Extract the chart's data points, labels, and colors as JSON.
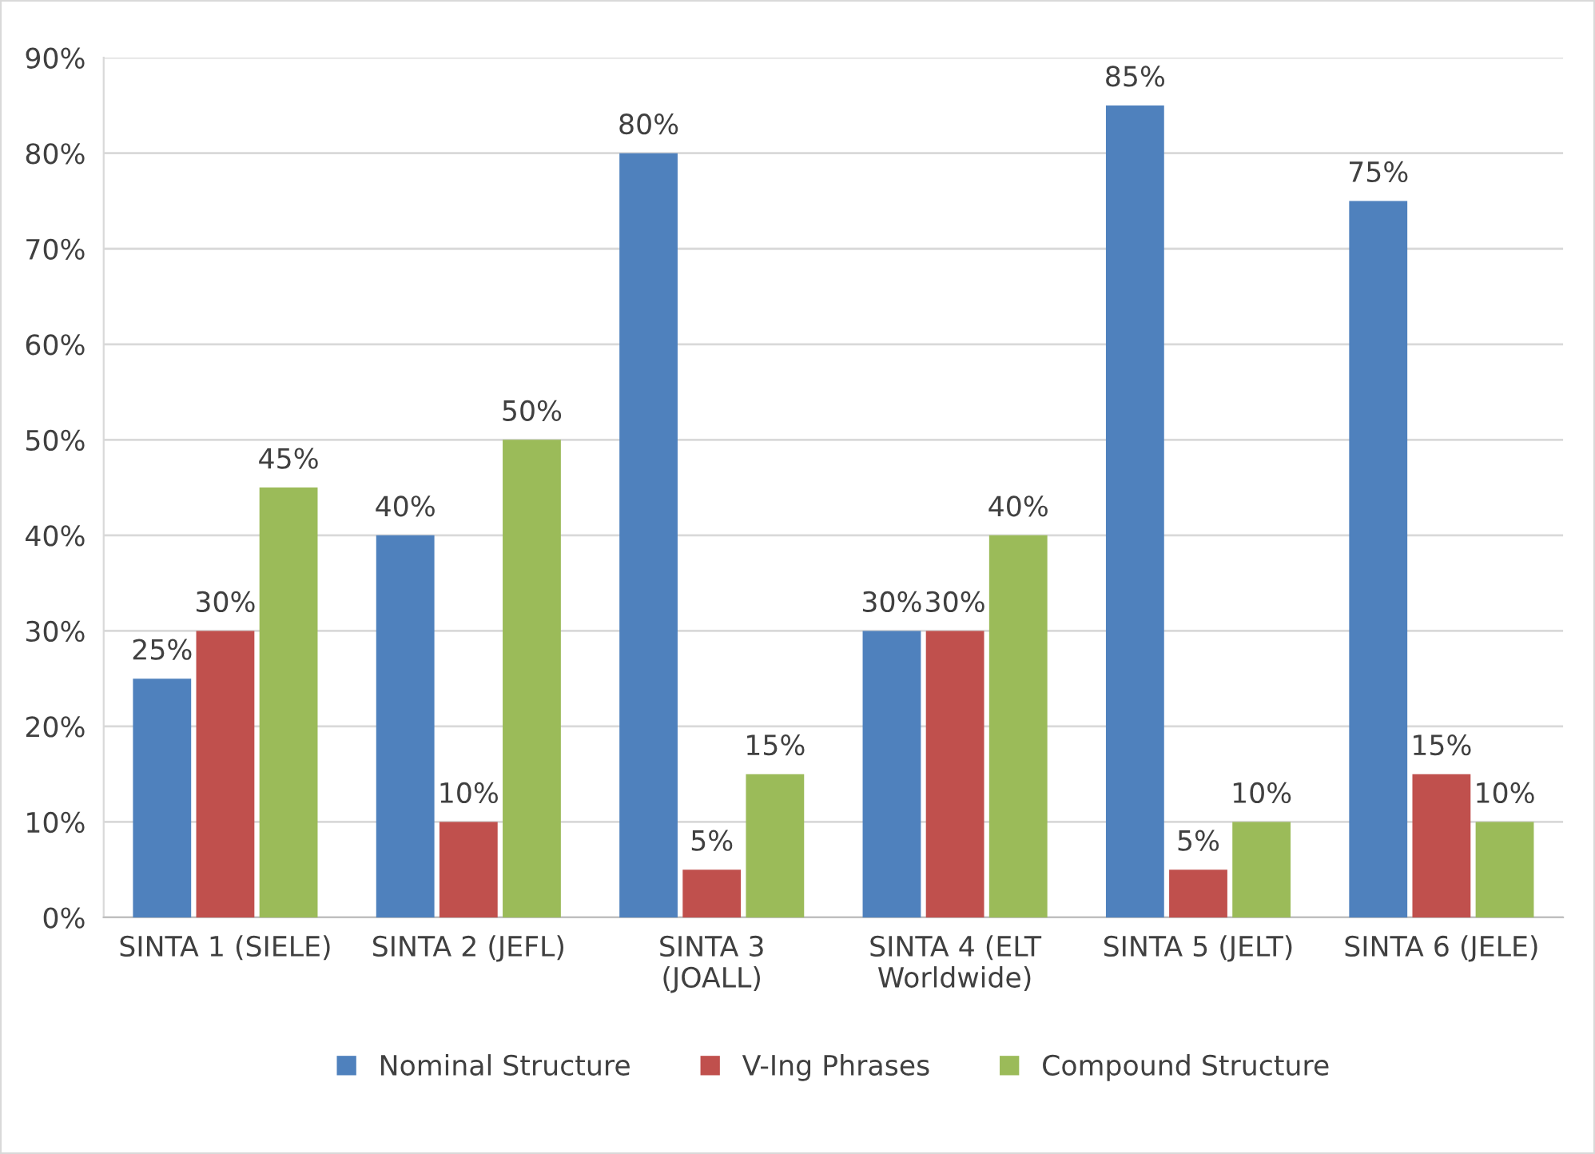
{
  "chart_data": {
    "type": "bar",
    "categories": [
      "SINTA 1 (SIELE)",
      "SINTA 2 (JEFL)",
      "SINTA 3\n(JOALL)",
      "SINTA 4 (ELT\nWorldwide)",
      "SINTA 5 (JELT)",
      "SINTA 6 (JELE)"
    ],
    "series": [
      {
        "name": "Nominal Structure",
        "color": "#4f81bd",
        "values": [
          25,
          40,
          80,
          30,
          85,
          75
        ],
        "value_labels": [
          "25%",
          "40%",
          "80%",
          "30%",
          "85%",
          "75%"
        ]
      },
      {
        "name": "V-Ing Phrases",
        "color": "#c0504d",
        "values": [
          30,
          10,
          5,
          30,
          5,
          15
        ],
        "value_labels": [
          "30%",
          "10%",
          "5%",
          "30%",
          "5%",
          "15%"
        ]
      },
      {
        "name": "Compound Structure",
        "color": "#9bbb59",
        "values": [
          45,
          50,
          15,
          40,
          10,
          10
        ],
        "value_labels": [
          "45%",
          "50%",
          "15%",
          "40%",
          "10%",
          "10%"
        ]
      }
    ],
    "ylim": [
      0,
      90
    ],
    "yticks": [
      {
        "value": 0,
        "label": "0%"
      },
      {
        "value": 10,
        "label": "10%"
      },
      {
        "value": 20,
        "label": "20%"
      },
      {
        "value": 30,
        "label": "30%"
      },
      {
        "value": 40,
        "label": "40%"
      },
      {
        "value": 50,
        "label": "50%"
      },
      {
        "value": 60,
        "label": "60%"
      },
      {
        "value": 70,
        "label": "70%"
      },
      {
        "value": 80,
        "label": "80%"
      },
      {
        "value": 90,
        "label": "90%"
      }
    ],
    "grid": "y",
    "legend": "bottom"
  }
}
